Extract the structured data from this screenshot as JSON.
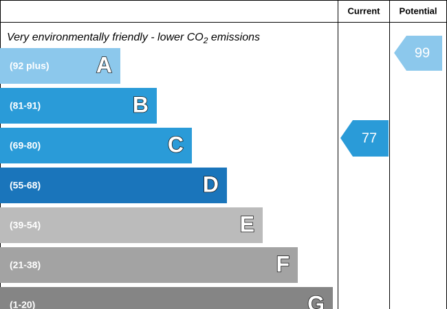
{
  "header": {
    "current": "Current",
    "potential": "Potential"
  },
  "subtitle": {
    "text": "Very environmentally friendly - lower CO",
    "subscript": "2",
    "suffix": " emissions"
  },
  "bands": [
    {
      "range": "(92 plus)",
      "letter": "A"
    },
    {
      "range": "(81-91)",
      "letter": "B"
    },
    {
      "range": "(69-80)",
      "letter": "C"
    },
    {
      "range": "(55-68)",
      "letter": "D"
    },
    {
      "range": "(39-54)",
      "letter": "E"
    },
    {
      "range": "(21-38)",
      "letter": "F"
    },
    {
      "range": "(1-20)",
      "letter": "G"
    }
  ],
  "current": {
    "value": 77
  },
  "potential": {
    "value": 99
  }
}
